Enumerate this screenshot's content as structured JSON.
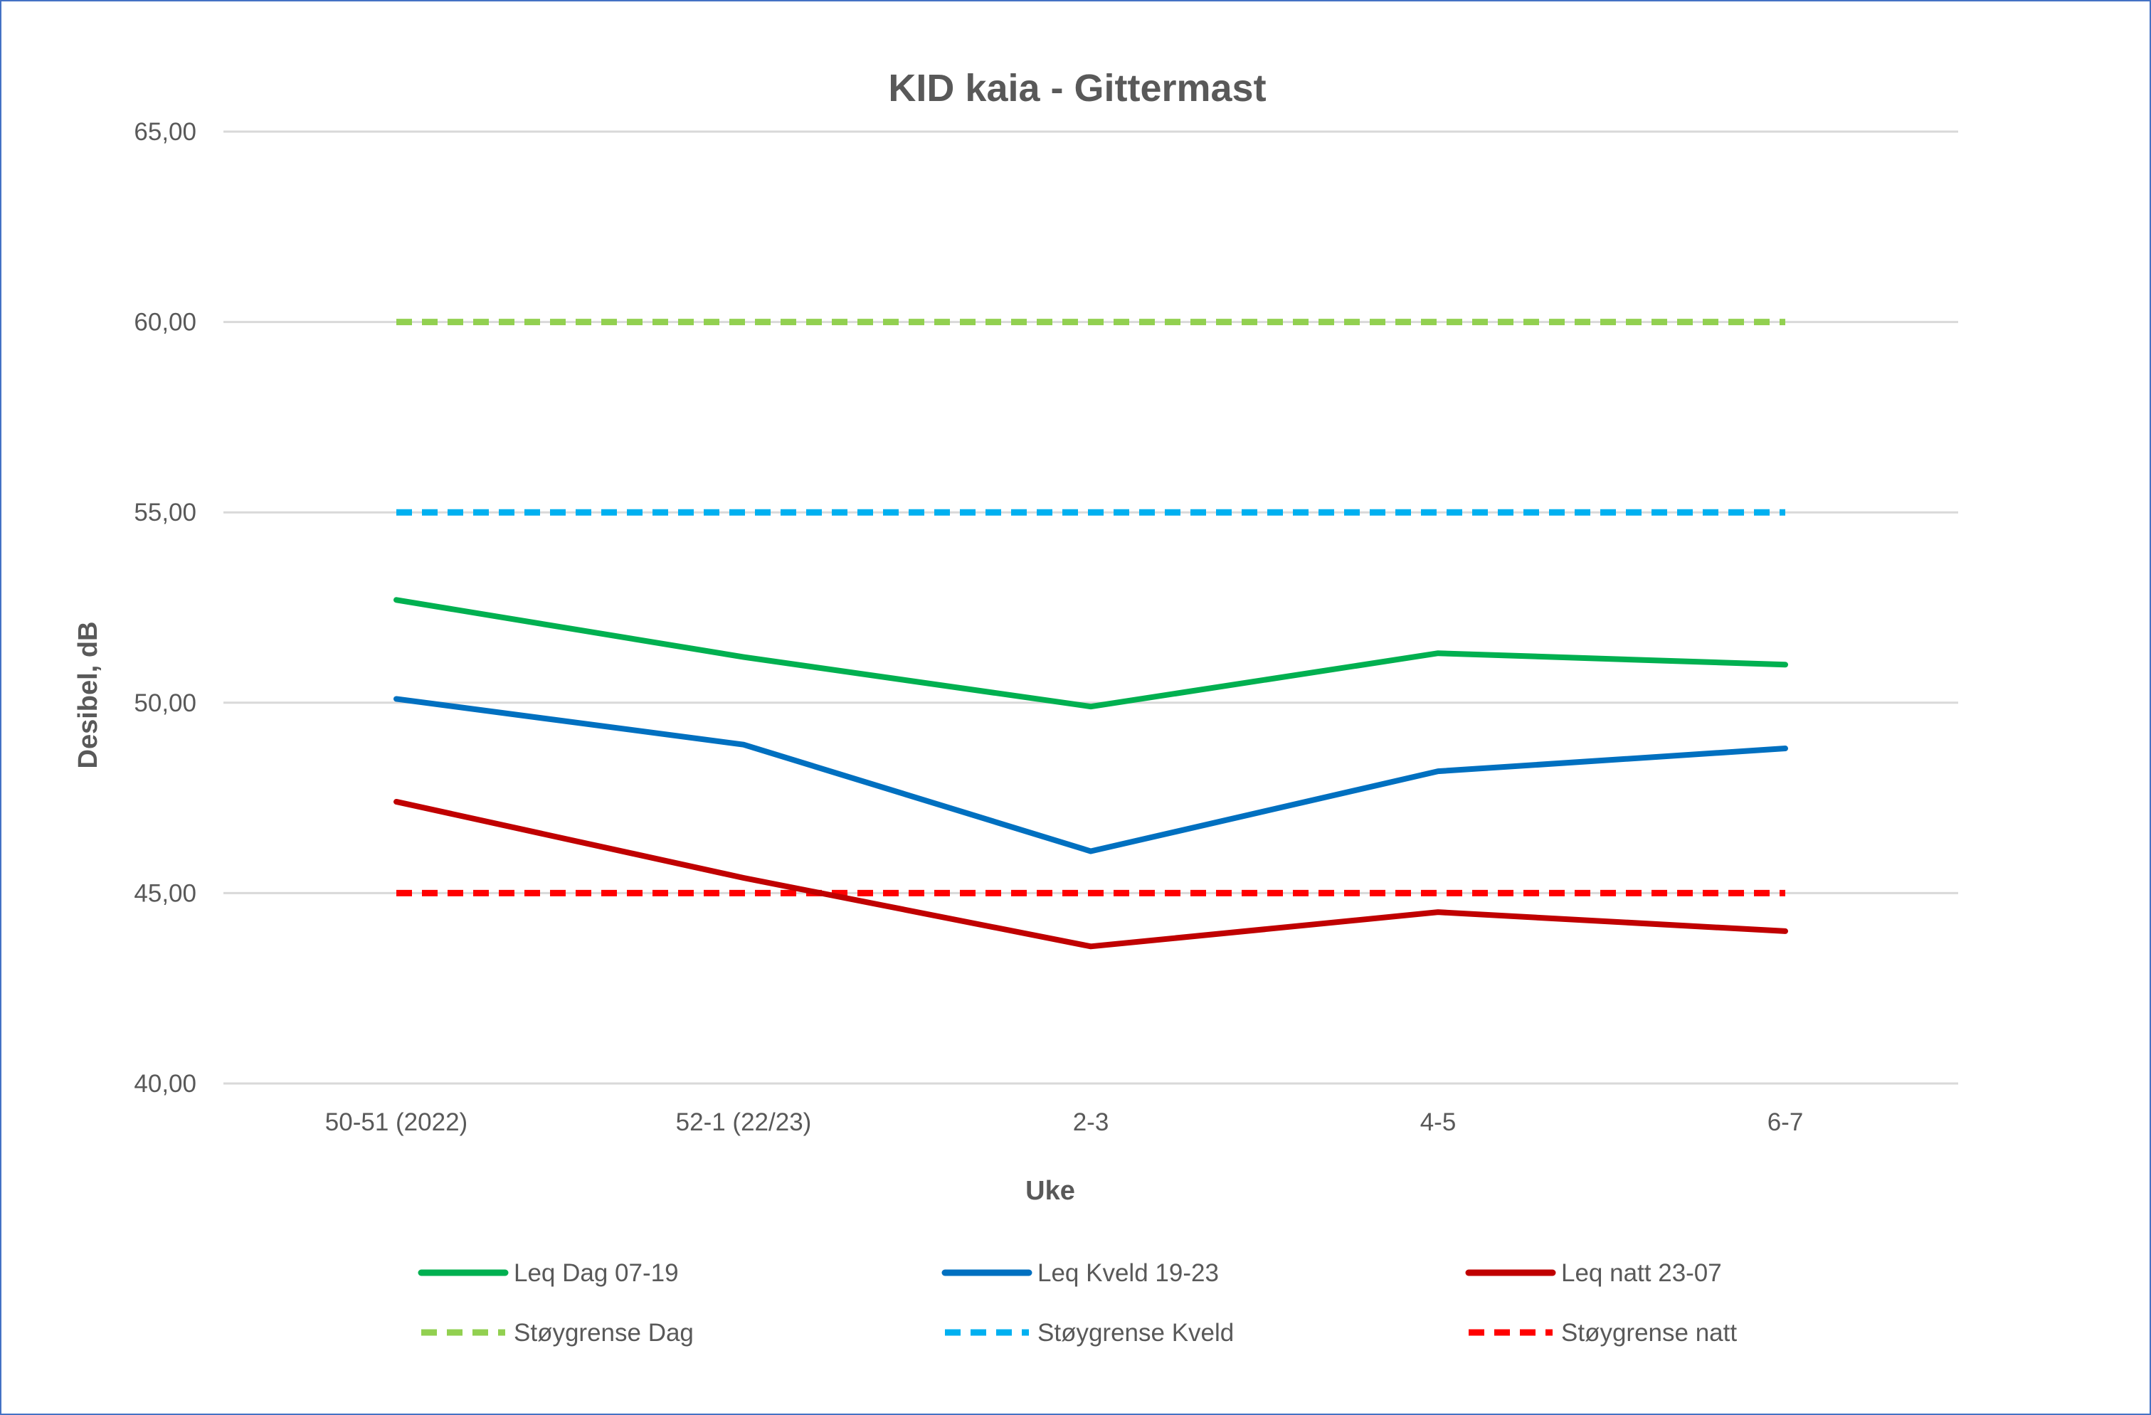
{
  "chart_data": {
    "type": "line",
    "title": "KID kaia - Gittermast",
    "xlabel": "Uke",
    "ylabel": "Desibel, dB",
    "categories": [
      "50-51 (2022)",
      "52-1 (22/23)",
      "2-3",
      "4-5",
      "6-7"
    ],
    "ylim": [
      40,
      65
    ],
    "yticks": [
      "40,00",
      "45,00",
      "50,00",
      "55,00",
      "60,00",
      "65,00"
    ],
    "grid": true,
    "legend_position": "bottom",
    "series": [
      {
        "name": "Leq Dag 07-19",
        "values": [
          52.7,
          51.2,
          49.9,
          51.3,
          51.0
        ],
        "color": "#00b050",
        "dashed": false
      },
      {
        "name": "Leq Kveld 19-23",
        "values": [
          50.1,
          48.9,
          46.1,
          48.2,
          48.8
        ],
        "color": "#0070c0",
        "dashed": false
      },
      {
        "name": "Leq natt 23-07",
        "values": [
          47.4,
          45.4,
          43.6,
          44.5,
          44.0
        ],
        "color": "#c00000",
        "dashed": false
      },
      {
        "name": "Støygrense Dag",
        "values": [
          60,
          60,
          60,
          60,
          60
        ],
        "color": "#92d050",
        "dashed": true
      },
      {
        "name": "Støygrense Kveld",
        "values": [
          55,
          55,
          55,
          55,
          55
        ],
        "color": "#00b0f0",
        "dashed": true
      },
      {
        "name": "Støygrense natt",
        "values": [
          45,
          45,
          45,
          45,
          45
        ],
        "color": "#ff0000",
        "dashed": true
      }
    ]
  }
}
